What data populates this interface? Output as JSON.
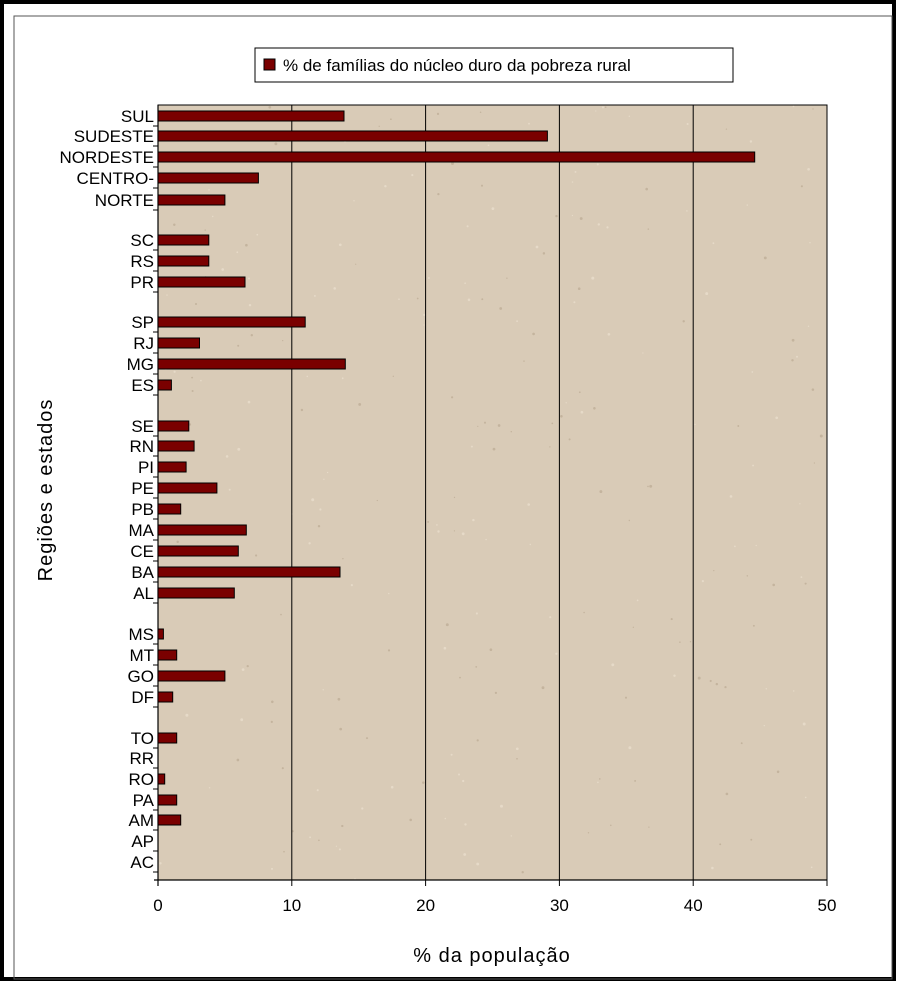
{
  "chart_data": {
    "type": "bar",
    "orientation": "horizontal",
    "categories": [
      "SUL",
      "SUDESTE",
      "NORDESTE",
      "CENTRO-",
      "NORTE",
      "SC",
      "RS",
      "PR",
      "SP",
      "RJ",
      "MG",
      "ES",
      "SE",
      "RN",
      "PI",
      "PE",
      "PB",
      "MA",
      "CE",
      "BA",
      "AL",
      "MS",
      "MT",
      "GO",
      "DF",
      "TO",
      "RR",
      "RO",
      "PA",
      "AM",
      "AP",
      "AC"
    ],
    "series": [
      {
        "name": "% de famílias do núcleo duro da pobreza rural",
        "color": "#7a0000",
        "values": [
          13.9,
          29.1,
          44.6,
          7.5,
          5.0,
          3.8,
          3.8,
          6.5,
          11.0,
          3.1,
          14.0,
          1.0,
          2.3,
          2.7,
          2.1,
          4.4,
          1.7,
          6.6,
          6.0,
          13.6,
          5.7,
          0.4,
          1.4,
          5.0,
          1.1,
          1.4,
          0,
          0.5,
          1.4,
          1.7,
          0,
          0
        ]
      }
    ],
    "xlabel": "% da população",
    "ylabel": "Regiões e estados",
    "xlim": [
      0,
      50
    ],
    "xticks": [
      "0",
      "10",
      "20",
      "30",
      "40",
      "50"
    ],
    "gridlines": "vertical",
    "legend_position": "top-center",
    "plot_background": "#d9cbb7"
  }
}
